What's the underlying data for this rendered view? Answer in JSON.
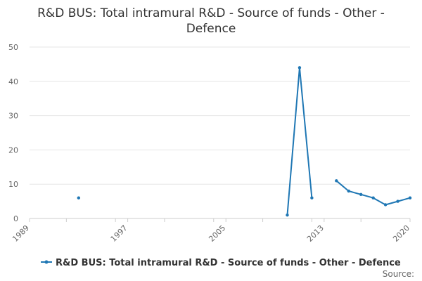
{
  "chart_data": {
    "type": "line",
    "title_lines": [
      "R&D BUS: Total intramural R&D - Source of funds - Other -",
      "Defence"
    ],
    "xlabel": "",
    "ylabel": "",
    "xlim": [
      1989,
      2020
    ],
    "ylim": [
      0,
      50
    ],
    "x_ticks": [
      1989,
      1997,
      2005,
      2013,
      2020
    ],
    "y_ticks": [
      0,
      10,
      20,
      30,
      40,
      50
    ],
    "grid": "horizontal",
    "legend_position": "bottom",
    "series": [
      {
        "name": "R&D BUS: Total intramural R&D - Source of funds - Other - Defence",
        "color": "#1f77b4",
        "points": [
          {
            "x": 1993,
            "y": 6
          },
          {
            "x": 2010,
            "y": 1
          },
          {
            "x": 2011,
            "y": 44
          },
          {
            "x": 2012,
            "y": 6
          },
          {
            "x": 2014,
            "y": 11
          },
          {
            "x": 2015,
            "y": 8
          },
          {
            "x": 2016,
            "y": 7
          },
          {
            "x": 2017,
            "y": 6
          },
          {
            "x": 2018,
            "y": 4
          },
          {
            "x": 2019,
            "y": 5
          },
          {
            "x": 2020,
            "y": 6
          }
        ],
        "segments": [
          [
            0
          ],
          [
            1,
            2,
            3
          ],
          [
            4,
            5,
            6,
            7,
            8,
            9,
            10
          ]
        ]
      }
    ]
  },
  "source_label": "Source:"
}
